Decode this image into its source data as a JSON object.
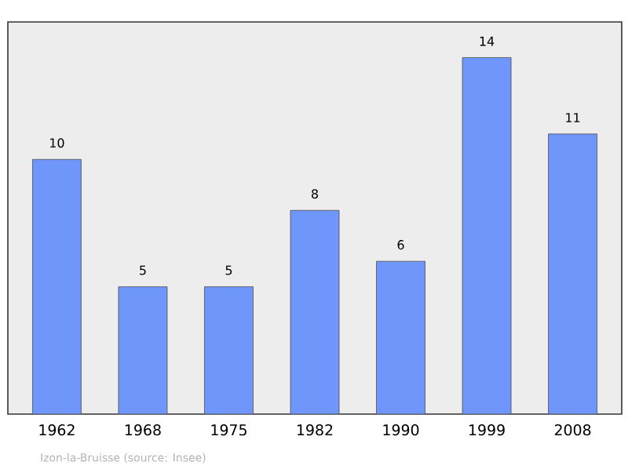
{
  "chart_data": {
    "type": "bar",
    "categories": [
      "1962",
      "1968",
      "1975",
      "1982",
      "1990",
      "1999",
      "2008"
    ],
    "values": [
      10,
      5,
      5,
      8,
      6,
      14,
      11
    ],
    "color": "#6f96fb",
    "data_labels": true,
    "annotations": [
      "Izon-la-Bruisse    (source: Insee)"
    ]
  }
}
